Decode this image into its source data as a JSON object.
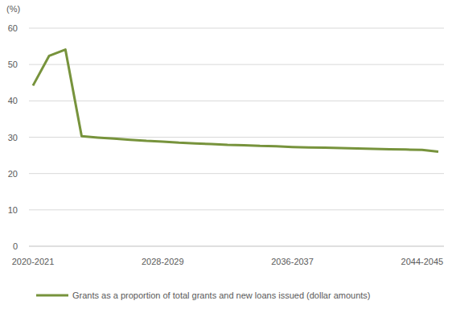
{
  "chart_data": {
    "type": "line",
    "y_label": "(%)",
    "categories": [
      "2020-2021",
      null,
      null,
      null,
      null,
      null,
      null,
      null,
      "2028-2029",
      null,
      null,
      null,
      null,
      null,
      null,
      null,
      "2036-2037",
      null,
      null,
      null,
      null,
      null,
      null,
      null,
      "2044-2045",
      null
    ],
    "series": [
      {
        "name": "Grants as a proportion of total grants and new loans issued (dollar amounts)",
        "color": "#77933c",
        "values": [
          44.2,
          52.4,
          54.1,
          30.3,
          29.9,
          29.6,
          29.3,
          29.0,
          28.8,
          28.5,
          28.3,
          28.1,
          27.9,
          27.8,
          27.6,
          27.5,
          27.3,
          27.2,
          27.1,
          27.0,
          26.9,
          26.8,
          26.7,
          26.6,
          26.5,
          26.0
        ]
      }
    ],
    "ylim": [
      0,
      60
    ],
    "yticks": [
      0,
      10,
      20,
      30,
      40,
      50,
      60
    ],
    "grid": true,
    "legend": "bottom"
  }
}
